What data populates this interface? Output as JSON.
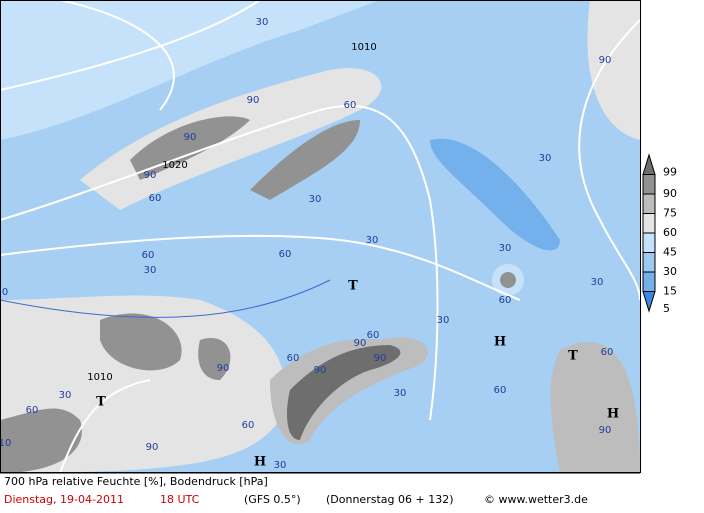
{
  "map": {
    "contour_labels": [
      "30",
      "1010",
      "90",
      "90",
      "1020",
      "90",
      "60",
      "90",
      "60",
      "30",
      "30",
      "30",
      "60",
      "60",
      "30",
      "30",
      "60",
      "30",
      "30",
      "90",
      "90",
      "90",
      "60",
      "60",
      "60",
      "1010",
      "30",
      "60",
      "90",
      "90",
      "30",
      "60",
      "90",
      "30",
      "60",
      "10",
      "0"
    ],
    "pressure_centers": [
      "T",
      "H",
      "T",
      "T",
      "H",
      "H"
    ]
  },
  "legend": {
    "levels": [
      {
        "value": 99,
        "color": "#6e6e6e"
      },
      {
        "value": 90,
        "color": "#929292"
      },
      {
        "value": 75,
        "color": "#bdbdbd"
      },
      {
        "value": 60,
        "color": "#e4e4e4"
      },
      {
        "value": 45,
        "color": "#c6e2fb"
      },
      {
        "value": 30,
        "color": "#9ccaf3"
      },
      {
        "value": 15,
        "color": "#74b1ec"
      },
      {
        "value": 5,
        "color": "#3a88e2"
      }
    ]
  },
  "footer": {
    "title": "700 hPa relative Feuchte [%], Bodendruck [hPa]",
    "date": "Dienstag, 19-04-2011",
    "time": "18 UTC",
    "model": "(GFS 0.5°)",
    "run": "(Donnerstag 06 + 132)",
    "source": "© www.wetter3.de"
  }
}
